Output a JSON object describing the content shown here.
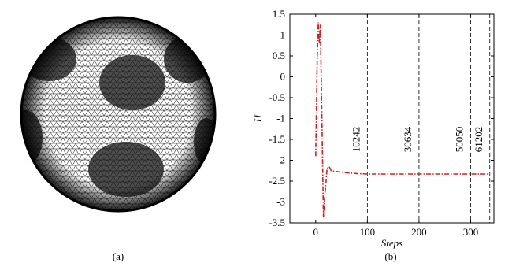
{
  "captions": {
    "a": "(a)",
    "b": "(b)"
  },
  "chart_data": {
    "type": "line",
    "x_label": "Steps",
    "y_label": "H",
    "x": [
      0,
      3,
      5,
      7,
      9,
      12,
      15,
      18,
      22,
      26,
      30,
      40,
      60,
      80,
      100,
      200,
      300,
      337
    ],
    "series": [
      {
        "name": "H",
        "color": "#cc2222",
        "values": [
          -1.9,
          0.5,
          1.3,
          0.8,
          1.25,
          -1,
          -3.35,
          -2.8,
          -2.2,
          -2.15,
          -2.25,
          -2.27,
          -2.3,
          -2.32,
          -2.33,
          -2.33,
          -2.33,
          -2.33
        ]
      }
    ],
    "xlim": [
      -50,
      345
    ],
    "ylim": [
      -3.5,
      1.5
    ],
    "xticks": [
      0,
      100,
      200,
      300
    ],
    "yticks": [
      1.5,
      1,
      0.5,
      0,
      -0.5,
      -1,
      -1.5,
      -2,
      -2.5,
      -3,
      -3.5
    ],
    "markers": [
      {
        "x": 100,
        "label": "10242"
      },
      {
        "x": 200,
        "label": "30634"
      },
      {
        "x": 300,
        "label": "50050"
      },
      {
        "x": 337,
        "label": "61202"
      }
    ]
  }
}
